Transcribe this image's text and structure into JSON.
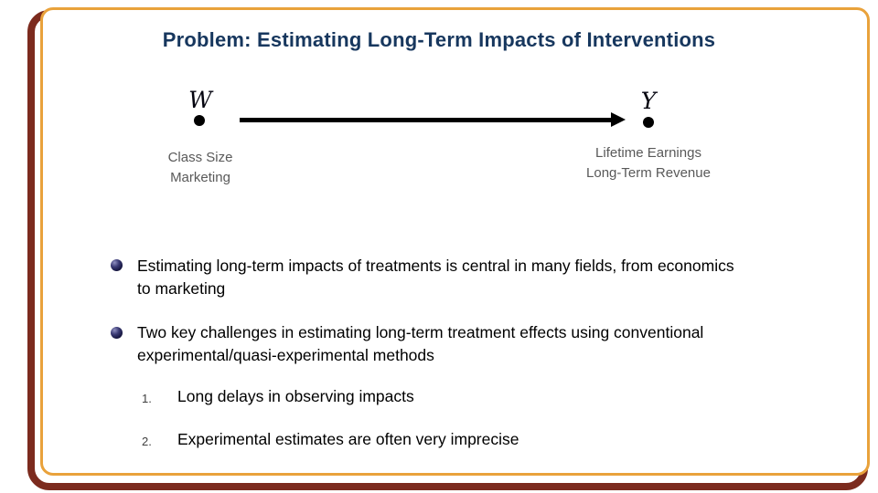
{
  "slide": {
    "title": "Problem: Estimating Long-Term Impacts of Interventions"
  },
  "diagram": {
    "treatment": {
      "symbol": "W",
      "examples": [
        "Class Size",
        "Marketing"
      ]
    },
    "outcome": {
      "symbol": "Y",
      "examples": [
        "Lifetime Earnings",
        "Long-Term Revenue"
      ]
    }
  },
  "bullets": [
    {
      "line1": "Estimating long-term impacts of treatments is central in many fields, from economics",
      "line2": "to marketing"
    },
    {
      "line1": "Two key challenges in estimating long-term treatment effects using conventional",
      "line2": "experimental/quasi-experimental methods"
    }
  ],
  "numbered_items": [
    {
      "number": "1.",
      "text": "Long delays in observing impacts"
    },
    {
      "number": "2.",
      "text": "Experimental estimates are often very imprecise"
    }
  ],
  "colors": {
    "title_navy": "#17375E",
    "body_text": "#000000",
    "node_labels_gray": "#595959",
    "frame_orange": "#E9A23B",
    "frame_maroon": "#7C2B1E",
    "bullet_sphere_navy": "#26265E"
  }
}
